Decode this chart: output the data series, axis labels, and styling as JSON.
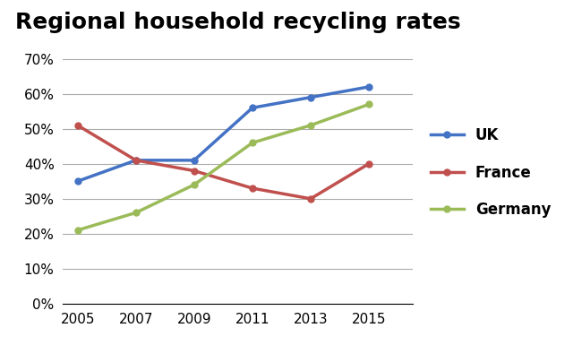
{
  "title": "Regional household recycling rates",
  "years": [
    2005,
    2007,
    2009,
    2011,
    2013,
    2015
  ],
  "series": {
    "UK": {
      "values": [
        35,
        41,
        41,
        56,
        59,
        62
      ],
      "color": "#4472C4",
      "marker": "o"
    },
    "France": {
      "values": [
        51,
        41,
        38,
        33,
        30,
        40
      ],
      "color": "#C0504D",
      "marker": "o"
    },
    "Germany": {
      "values": [
        21,
        26,
        34,
        46,
        51,
        57
      ],
      "color": "#9BBB59",
      "marker": "o"
    }
  },
  "ylim": [
    0,
    75
  ],
  "yticks": [
    0,
    10,
    20,
    30,
    40,
    50,
    60,
    70
  ],
  "ytick_labels": [
    "0%",
    "10%",
    "20%",
    "30%",
    "40%",
    "50%",
    "60%",
    "70%"
  ],
  "xlim": [
    2004.5,
    2016.5
  ],
  "xticks": [
    2005,
    2007,
    2009,
    2011,
    2013,
    2015
  ],
  "legend_labels": [
    "UK",
    "France",
    "Germany"
  ],
  "line_width": 2.5,
  "background_color": "#ffffff",
  "grid_color": "#aaaaaa",
  "title_fontsize": 18,
  "tick_fontsize": 11,
  "legend_fontsize": 12
}
